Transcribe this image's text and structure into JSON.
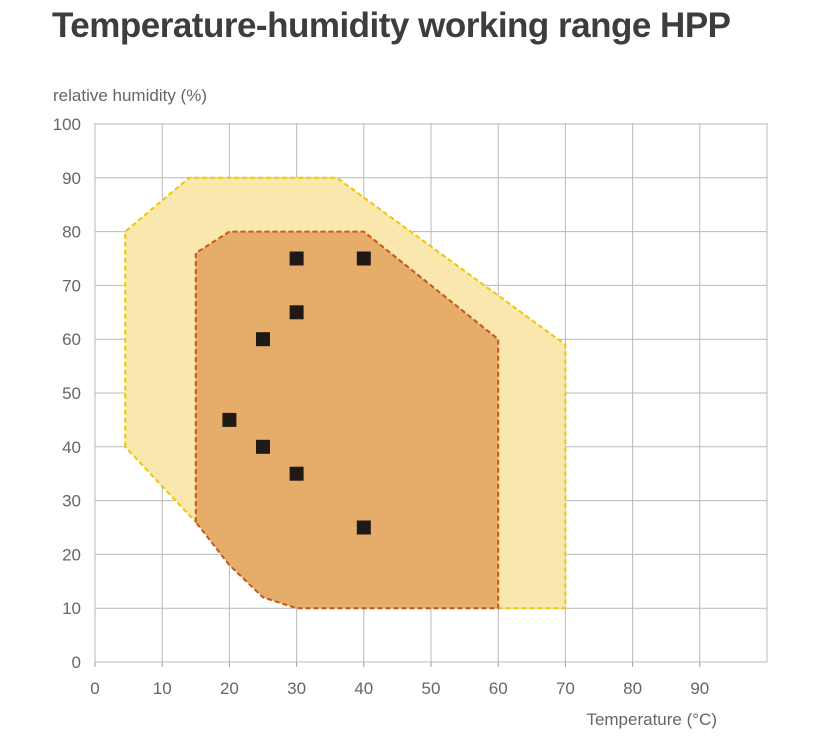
{
  "chart_data": {
    "type": "scatter",
    "title": "Temperature-humidity working range HPP",
    "xlabel": "Temperature (°C)",
    "ylabel": "relative humidity (%)",
    "xlim": [
      0,
      100
    ],
    "ylim": [
      0,
      100
    ],
    "xticks": [
      0,
      10,
      20,
      30,
      40,
      50,
      60,
      70,
      80,
      90
    ],
    "yticks": [
      0,
      10,
      20,
      30,
      40,
      50,
      60,
      70,
      80,
      90,
      100
    ],
    "grid": true,
    "regions": [
      {
        "fill": "#f9e7ae",
        "border": "#f0c800",
        "points": [
          [
            4.5,
            40
          ],
          [
            4.5,
            80
          ],
          [
            14,
            90
          ],
          [
            36,
            90
          ],
          [
            70,
            59
          ],
          [
            70,
            10
          ],
          [
            30,
            10
          ],
          [
            15,
            26
          ]
        ]
      },
      {
        "fill": "#e6ad6a",
        "border": "#c8571e",
        "points": [
          [
            15,
            26
          ],
          [
            15,
            76
          ],
          [
            20,
            80
          ],
          [
            40,
            80
          ],
          [
            60,
            60
          ],
          [
            60,
            10
          ],
          [
            30,
            10
          ],
          [
            25,
            12
          ],
          [
            20,
            18
          ]
        ]
      }
    ],
    "points": [
      {
        "x": 30,
        "y": 75
      },
      {
        "x": 40,
        "y": 75
      },
      {
        "x": 30,
        "y": 65
      },
      {
        "x": 25,
        "y": 60
      },
      {
        "x": 20,
        "y": 45
      },
      {
        "x": 25,
        "y": 40
      },
      {
        "x": 30,
        "y": 35
      },
      {
        "x": 40,
        "y": 25
      }
    ],
    "marker_color": "#1f1a15"
  }
}
